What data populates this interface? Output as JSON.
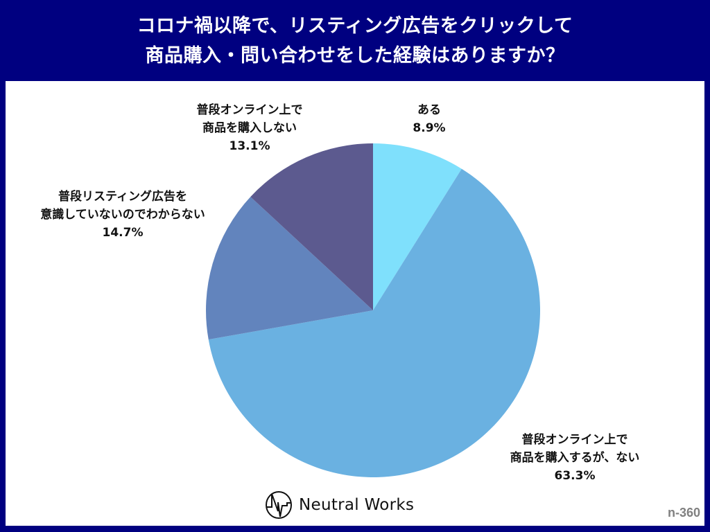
{
  "header": {
    "title_line1": "コロナ禍以降で、リスティング広告をクリックして",
    "title_line2": "商品購入・問い合わせをした経験はありますか？"
  },
  "labels": {
    "aru": {
      "line1": "ある",
      "value": "8.9%"
    },
    "no_purchase_despite_online": {
      "line1": "普段オンライン上で",
      "line2": "商品を購入するが、ない",
      "value": "63.3%"
    },
    "not_aware": {
      "line1": "普段リスティング広告を",
      "line2": "意識していないのでわからない",
      "value": "14.7%"
    },
    "no_online_purchase": {
      "line1": "普段オンライン上で",
      "line2": "商品を購入しない",
      "value": "13.1%"
    }
  },
  "footer": {
    "brand": "Neutral Works",
    "sample_size": "n-360"
  },
  "colors": {
    "frame": "#000080",
    "slice_aru": "#7fe0fc",
    "slice_no_despite": "#6ab1e1",
    "slice_not_aware": "#6284bd",
    "slice_no_online": "#5c5a8f"
  },
  "chart_data": {
    "type": "pie",
    "title": "コロナ禍以降で、リスティング広告をクリックして商品購入・問い合わせをした経験はありますか？",
    "categories": [
      "ある",
      "普段オンライン上で商品を購入するが、ない",
      "普段リスティング広告を意識していないのでわからない",
      "普段オンライン上で商品を購入しない"
    ],
    "values": [
      8.9,
      63.3,
      14.7,
      13.1
    ],
    "unit": "%",
    "start_angle": "12 o'clock",
    "direction": "clockwise",
    "sample_size": "n-360"
  }
}
